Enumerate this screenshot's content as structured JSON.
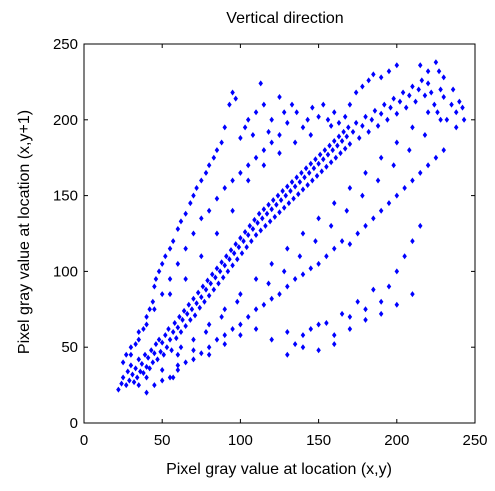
{
  "chart_data": {
    "type": "scatter",
    "title": "Vertical direction",
    "xlabel": "Pixel gray value at location (x,y)",
    "ylabel": "Pixel gray value at location (x,y+1)",
    "xlim": [
      0,
      250
    ],
    "ylim": [
      0,
      250
    ],
    "xticks": [
      "0",
      "50",
      "100",
      "150",
      "200",
      "250"
    ],
    "yticks": [
      "0",
      "50",
      "100",
      "150",
      "200",
      "250"
    ],
    "grid": false,
    "marker": "diamond",
    "marker_color": "#0000ff",
    "points": [
      [
        22,
        22
      ],
      [
        24,
        26
      ],
      [
        25,
        30
      ],
      [
        27,
        25
      ],
      [
        28,
        34
      ],
      [
        29,
        28
      ],
      [
        30,
        38
      ],
      [
        31,
        32
      ],
      [
        32,
        27
      ],
      [
        33,
        36
      ],
      [
        34,
        30
      ],
      [
        35,
        42
      ],
      [
        36,
        34
      ],
      [
        37,
        39
      ],
      [
        38,
        33
      ],
      [
        39,
        45
      ],
      [
        40,
        37
      ],
      [
        41,
        43
      ],
      [
        42,
        36
      ],
      [
        43,
        48
      ],
      [
        44,
        40
      ],
      [
        45,
        46
      ],
      [
        46,
        52
      ],
      [
        47,
        42
      ],
      [
        48,
        55
      ],
      [
        49,
        47
      ],
      [
        50,
        53
      ],
      [
        51,
        45
      ],
      [
        52,
        58
      ],
      [
        53,
        50
      ],
      [
        54,
        62
      ],
      [
        55,
        55
      ],
      [
        56,
        48
      ],
      [
        57,
        60
      ],
      [
        58,
        66
      ],
      [
        59,
        56
      ],
      [
        60,
        63
      ],
      [
        61,
        70
      ],
      [
        62,
        60
      ],
      [
        63,
        68
      ],
      [
        64,
        74
      ],
      [
        65,
        64
      ],
      [
        66,
        72
      ],
      [
        67,
        78
      ],
      [
        68,
        68
      ],
      [
        69,
        75
      ],
      [
        70,
        82
      ],
      [
        71,
        71
      ],
      [
        72,
        79
      ],
      [
        73,
        86
      ],
      [
        74,
        76
      ],
      [
        75,
        83
      ],
      [
        76,
        90
      ],
      [
        77,
        80
      ],
      [
        78,
        88
      ],
      [
        79,
        94
      ],
      [
        80,
        84
      ],
      [
        81,
        92
      ],
      [
        82,
        98
      ],
      [
        83,
        88
      ],
      [
        84,
        96
      ],
      [
        85,
        102
      ],
      [
        86,
        92
      ],
      [
        87,
        100
      ],
      [
        88,
        106
      ],
      [
        89,
        96
      ],
      [
        90,
        104
      ],
      [
        91,
        110
      ],
      [
        92,
        100
      ],
      [
        93,
        108
      ],
      [
        94,
        114
      ],
      [
        95,
        104
      ],
      [
        96,
        112
      ],
      [
        97,
        118
      ],
      [
        98,
        108
      ],
      [
        99,
        116
      ],
      [
        100,
        122
      ],
      [
        101,
        112
      ],
      [
        102,
        120
      ],
      [
        103,
        126
      ],
      [
        104,
        116
      ],
      [
        105,
        124
      ],
      [
        106,
        130
      ],
      [
        107,
        120
      ],
      [
        108,
        128
      ],
      [
        109,
        134
      ],
      [
        110,
        124
      ],
      [
        111,
        132
      ],
      [
        112,
        138
      ],
      [
        113,
        127
      ],
      [
        114,
        135
      ],
      [
        115,
        141
      ],
      [
        116,
        130
      ],
      [
        117,
        138
      ],
      [
        118,
        144
      ],
      [
        119,
        133
      ],
      [
        120,
        141
      ],
      [
        121,
        147
      ],
      [
        122,
        136
      ],
      [
        123,
        144
      ],
      [
        124,
        150
      ],
      [
        125,
        139
      ],
      [
        126,
        147
      ],
      [
        127,
        153
      ],
      [
        128,
        142
      ],
      [
        129,
        150
      ],
      [
        130,
        156
      ],
      [
        131,
        145
      ],
      [
        132,
        153
      ],
      [
        133,
        159
      ],
      [
        134,
        148
      ],
      [
        135,
        156
      ],
      [
        136,
        162
      ],
      [
        137,
        151
      ],
      [
        138,
        159
      ],
      [
        139,
        165
      ],
      [
        140,
        154
      ],
      [
        141,
        162
      ],
      [
        142,
        168
      ],
      [
        143,
        157
      ],
      [
        144,
        165
      ],
      [
        145,
        171
      ],
      [
        146,
        160
      ],
      [
        147,
        168
      ],
      [
        148,
        174
      ],
      [
        149,
        163
      ],
      [
        150,
        171
      ],
      [
        151,
        177
      ],
      [
        152,
        166
      ],
      [
        153,
        174
      ],
      [
        154,
        180
      ],
      [
        155,
        169
      ],
      [
        156,
        177
      ],
      [
        157,
        183
      ],
      [
        158,
        172
      ],
      [
        159,
        180
      ],
      [
        160,
        186
      ],
      [
        161,
        175
      ],
      [
        162,
        183
      ],
      [
        163,
        189
      ],
      [
        164,
        178
      ],
      [
        165,
        186
      ],
      [
        166,
        192
      ],
      [
        167,
        181
      ],
      [
        168,
        189
      ],
      [
        169,
        195
      ],
      [
        170,
        184
      ],
      [
        172,
        192
      ],
      [
        174,
        198
      ],
      [
        176,
        188
      ],
      [
        178,
        196
      ],
      [
        180,
        202
      ],
      [
        182,
        192
      ],
      [
        184,
        200
      ],
      [
        186,
        206
      ],
      [
        188,
        196
      ],
      [
        190,
        204
      ],
      [
        192,
        210
      ],
      [
        194,
        200
      ],
      [
        196,
        208
      ],
      [
        198,
        214
      ],
      [
        200,
        204
      ],
      [
        202,
        212
      ],
      [
        204,
        218
      ],
      [
        206,
        208
      ],
      [
        208,
        216
      ],
      [
        210,
        222
      ],
      [
        212,
        212
      ],
      [
        214,
        220
      ],
      [
        216,
        226
      ],
      [
        218,
        216
      ],
      [
        220,
        224
      ],
      [
        222,
        218
      ],
      [
        224,
        210
      ],
      [
        226,
        205
      ],
      [
        228,
        220
      ],
      [
        230,
        215
      ],
      [
        232,
        200
      ],
      [
        235,
        210
      ],
      [
        238,
        205
      ],
      [
        240,
        212
      ],
      [
        242,
        208
      ],
      [
        243,
        200
      ],
      [
        238,
        195
      ],
      [
        236,
        220
      ],
      [
        230,
        228
      ],
      [
        227,
        232
      ],
      [
        225,
        238
      ],
      [
        220,
        232
      ],
      [
        215,
        236
      ],
      [
        25,
        40
      ],
      [
        27,
        45
      ],
      [
        30,
        50
      ],
      [
        33,
        52
      ],
      [
        35,
        60
      ],
      [
        38,
        62
      ],
      [
        40,
        70
      ],
      [
        42,
        75
      ],
      [
        44,
        80
      ],
      [
        45,
        90
      ],
      [
        46,
        95
      ],
      [
        48,
        100
      ],
      [
        50,
        105
      ],
      [
        52,
        110
      ],
      [
        55,
        115
      ],
      [
        57,
        120
      ],
      [
        60,
        128
      ],
      [
        62,
        133
      ],
      [
        65,
        138
      ],
      [
        68,
        145
      ],
      [
        70,
        150
      ],
      [
        72,
        155
      ],
      [
        75,
        160
      ],
      [
        78,
        165
      ],
      [
        80,
        170
      ],
      [
        83,
        175
      ],
      [
        85,
        180
      ],
      [
        88,
        185
      ],
      [
        90,
        195
      ],
      [
        93,
        210
      ],
      [
        95,
        218
      ],
      [
        97,
        214
      ],
      [
        100,
        188
      ],
      [
        103,
        195
      ],
      [
        105,
        200
      ],
      [
        108,
        190
      ],
      [
        110,
        205
      ],
      [
        113,
        224
      ],
      [
        115,
        210
      ],
      [
        118,
        192
      ],
      [
        120,
        200
      ],
      [
        125,
        215
      ],
      [
        128,
        205
      ],
      [
        130,
        198
      ],
      [
        133,
        210
      ],
      [
        136,
        205
      ],
      [
        140,
        195
      ],
      [
        143,
        200
      ],
      [
        146,
        208
      ],
      [
        150,
        202
      ],
      [
        153,
        210
      ],
      [
        156,
        200
      ],
      [
        158,
        196
      ],
      [
        160,
        205
      ],
      [
        163,
        198
      ],
      [
        167,
        202
      ],
      [
        170,
        210
      ],
      [
        174,
        218
      ],
      [
        178,
        222
      ],
      [
        182,
        226
      ],
      [
        185,
        230
      ],
      [
        190,
        228
      ],
      [
        195,
        232
      ],
      [
        200,
        236
      ],
      [
        40,
        20
      ],
      [
        45,
        25
      ],
      [
        50,
        28
      ],
      [
        55,
        30
      ],
      [
        60,
        35
      ],
      [
        65,
        40
      ],
      [
        70,
        42
      ],
      [
        75,
        46
      ],
      [
        80,
        50
      ],
      [
        85,
        55
      ],
      [
        90,
        58
      ],
      [
        95,
        62
      ],
      [
        100,
        65
      ],
      [
        105,
        70
      ],
      [
        110,
        75
      ],
      [
        115,
        78
      ],
      [
        120,
        82
      ],
      [
        125,
        85
      ],
      [
        130,
        90
      ],
      [
        135,
        95
      ],
      [
        140,
        98
      ],
      [
        145,
        102
      ],
      [
        150,
        105
      ],
      [
        155,
        110
      ],
      [
        160,
        115
      ],
      [
        165,
        120
      ],
      [
        170,
        118
      ],
      [
        175,
        125
      ],
      [
        180,
        130
      ],
      [
        185,
        135
      ],
      [
        190,
        140
      ],
      [
        195,
        145
      ],
      [
        200,
        150
      ],
      [
        205,
        155
      ],
      [
        210,
        160
      ],
      [
        215,
        165
      ],
      [
        220,
        170
      ],
      [
        225,
        175
      ],
      [
        230,
        180
      ],
      [
        60,
        38
      ],
      [
        70,
        48
      ],
      [
        80,
        45
      ],
      [
        90,
        52
      ],
      [
        100,
        58
      ],
      [
        110,
        62
      ],
      [
        120,
        55
      ],
      [
        130,
        60
      ],
      [
        140,
        50
      ],
      [
        150,
        65
      ],
      [
        160,
        58
      ],
      [
        170,
        70
      ],
      [
        180,
        75
      ],
      [
        190,
        80
      ],
      [
        195,
        90
      ],
      [
        200,
        100
      ],
      [
        205,
        110
      ],
      [
        210,
        120
      ],
      [
        215,
        130
      ],
      [
        55,
        85
      ],
      [
        65,
        95
      ],
      [
        75,
        110
      ],
      [
        85,
        125
      ],
      [
        95,
        140
      ],
      [
        105,
        160
      ],
      [
        115,
        170
      ],
      [
        125,
        178
      ],
      [
        135,
        185
      ],
      [
        145,
        190
      ],
      [
        30,
        45
      ],
      [
        35,
        55
      ],
      [
        40,
        65
      ],
      [
        45,
        75
      ],
      [
        50,
        85
      ],
      [
        55,
        95
      ],
      [
        60,
        105
      ],
      [
        65,
        115
      ],
      [
        70,
        125
      ],
      [
        75,
        135
      ],
      [
        80,
        140
      ],
      [
        85,
        148
      ],
      [
        90,
        155
      ],
      [
        95,
        160
      ],
      [
        100,
        165
      ],
      [
        105,
        170
      ],
      [
        110,
        175
      ],
      [
        115,
        180
      ],
      [
        120,
        185
      ],
      [
        125,
        190
      ],
      [
        35,
        25
      ],
      [
        40,
        30
      ],
      [
        50,
        35
      ],
      [
        60,
        45
      ],
      [
        70,
        55
      ],
      [
        80,
        65
      ],
      [
        90,
        75
      ],
      [
        100,
        85
      ],
      [
        110,
        95
      ],
      [
        120,
        105
      ],
      [
        130,
        115
      ],
      [
        140,
        125
      ],
      [
        150,
        135
      ],
      [
        160,
        145
      ],
      [
        170,
        155
      ],
      [
        180,
        165
      ],
      [
        190,
        175
      ],
      [
        200,
        185
      ],
      [
        210,
        195
      ],
      [
        220,
        205
      ],
      [
        57,
        30
      ],
      [
        62,
        50
      ],
      [
        78,
        60
      ],
      [
        88,
        70
      ],
      [
        98,
        80
      ],
      [
        118,
        92
      ],
      [
        128,
        100
      ],
      [
        138,
        110
      ],
      [
        148,
        120
      ],
      [
        158,
        130
      ],
      [
        168,
        140
      ],
      [
        178,
        150
      ],
      [
        188,
        160
      ],
      [
        198,
        170
      ],
      [
        208,
        180
      ],
      [
        218,
        190
      ],
      [
        228,
        200
      ],
      [
        150,
        48
      ],
      [
        160,
        52
      ],
      [
        170,
        62
      ],
      [
        180,
        68
      ],
      [
        190,
        72
      ],
      [
        200,
        78
      ],
      [
        210,
        85
      ],
      [
        130,
        45
      ],
      [
        135,
        52
      ],
      [
        140,
        58
      ],
      [
        145,
        62
      ],
      [
        155,
        66
      ],
      [
        165,
        72
      ],
      [
        175,
        80
      ],
      [
        185,
        88
      ]
    ]
  }
}
